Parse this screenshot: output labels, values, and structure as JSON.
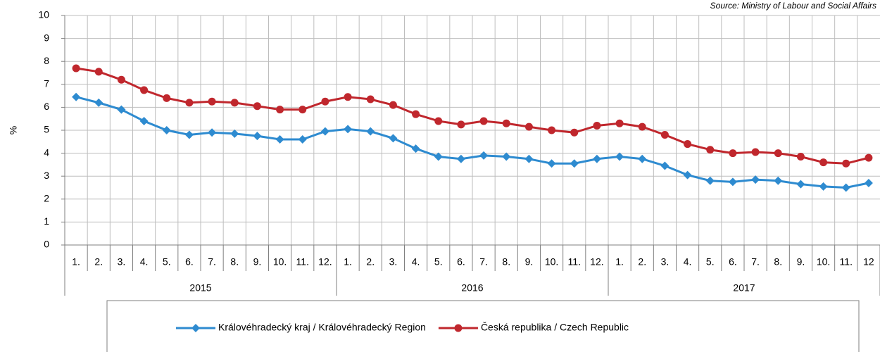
{
  "chart_data": {
    "type": "line",
    "source": "Source: Ministry of Labour and Social Affairs",
    "y_label": "%",
    "categories": [
      "1.",
      "2.",
      "3.",
      "4.",
      "5.",
      "6.",
      "7.",
      "8.",
      "9.",
      "10.",
      "11.",
      "12.",
      "1.",
      "2.",
      "3.",
      "4.",
      "5.",
      "6.",
      "7.",
      "8.",
      "9.",
      "10.",
      "11.",
      "12.",
      "1.",
      "2.",
      "3.",
      "4.",
      "5.",
      "6.",
      "7.",
      "8.",
      "9.",
      "10.",
      "11.",
      "12"
    ],
    "x_groups": [
      "2015",
      "2016",
      "2017"
    ],
    "series": [
      {
        "name": "Královéhradecký kraj / Královéhradecký Region",
        "color": "#2e8bd0",
        "marker": "diamond",
        "values": [
          6.45,
          6.2,
          5.9,
          5.4,
          5.0,
          4.8,
          4.9,
          4.85,
          4.75,
          4.6,
          4.6,
          4.95,
          5.05,
          4.95,
          4.65,
          4.2,
          3.85,
          3.75,
          3.9,
          3.85,
          3.75,
          3.55,
          3.55,
          3.75,
          3.85,
          3.75,
          3.45,
          3.05,
          2.8,
          2.75,
          2.85,
          2.8,
          2.65,
          2.55,
          2.5,
          2.7
        ]
      },
      {
        "name": "Česká republika / Czech Republic",
        "color": "#c0272d",
        "marker": "circle",
        "values": [
          7.7,
          7.55,
          7.2,
          6.75,
          6.4,
          6.2,
          6.25,
          6.2,
          6.05,
          5.9,
          5.9,
          6.25,
          6.45,
          6.35,
          6.1,
          5.7,
          5.4,
          5.25,
          5.4,
          5.3,
          5.15,
          5.0,
          4.9,
          5.2,
          5.3,
          5.15,
          4.8,
          4.4,
          4.15,
          4.0,
          4.05,
          4.0,
          3.85,
          3.6,
          3.55,
          3.8
        ]
      }
    ],
    "ylim": [
      0,
      10
    ],
    "yticks": [
      0,
      1,
      2,
      3,
      4,
      5,
      6,
      7,
      8,
      9,
      10
    ],
    "grid": true
  }
}
